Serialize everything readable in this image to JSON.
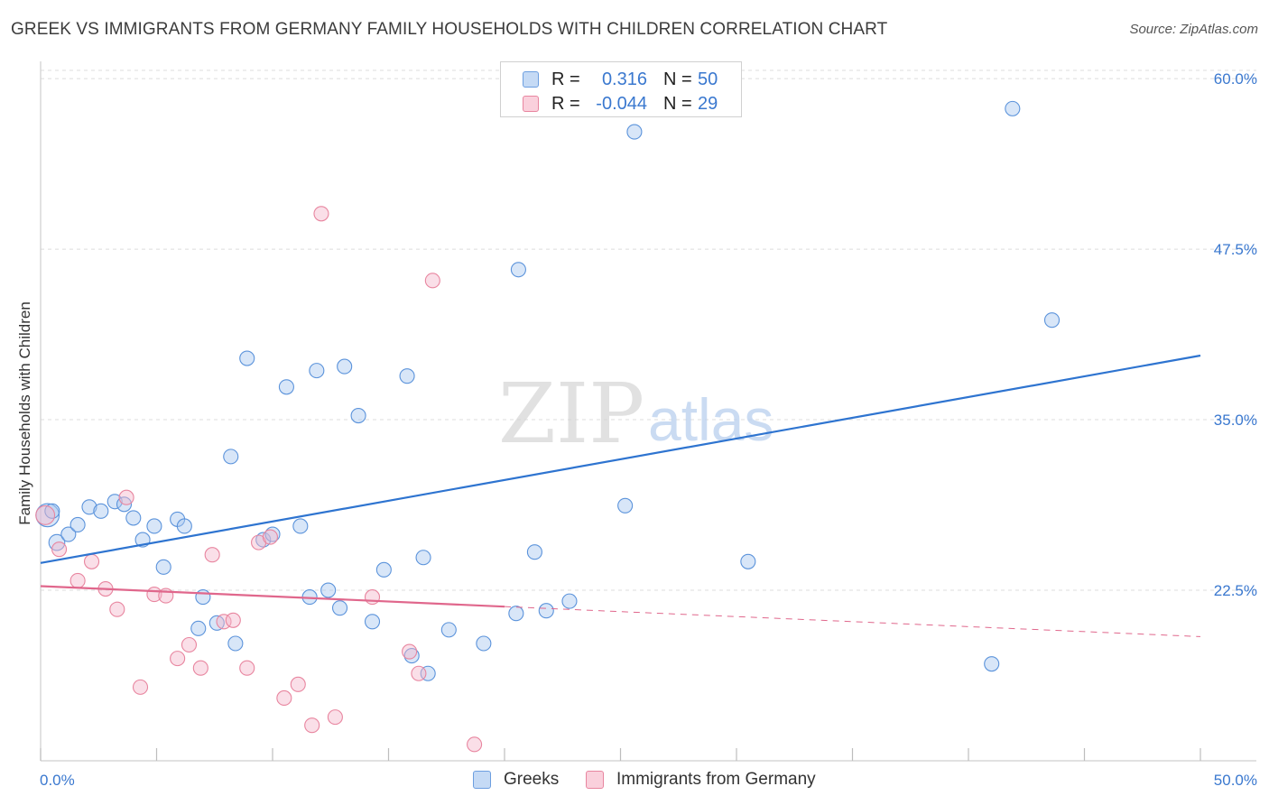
{
  "title": "GREEK VS IMMIGRANTS FROM GERMANY FAMILY HOUSEHOLDS WITH CHILDREN CORRELATION CHART",
  "source": "Source: ZipAtlas.com",
  "watermark": {
    "zip": "ZIP",
    "atlas": "atlas"
  },
  "legend_top": {
    "rows": [
      {
        "r_label": "R =",
        "r_value": "0.316",
        "n_label": "N =",
        "n_value": "50",
        "color": "#a8c8f0"
      },
      {
        "r_label": "R =",
        "r_value": "-0.044",
        "n_label": "N =",
        "n_value": "29",
        "color": "#f5b8cb"
      }
    ]
  },
  "legend_bottom": {
    "items": [
      {
        "label": "Greeks",
        "color": "#a8c8f0"
      },
      {
        "label": "Immigrants from Germany",
        "color": "#f5b8cb"
      }
    ]
  },
  "chart_data": {
    "type": "scatter",
    "title": "GREEK VS IMMIGRANTS FROM GERMANY FAMILY HOUSEHOLDS WITH CHILDREN CORRELATION CHART",
    "xlabel": "",
    "ylabel": "Family Households with Children",
    "xlim": [
      0,
      50
    ],
    "ylim": [
      10,
      61
    ],
    "x_tick_labels": [
      "0.0%",
      "50.0%"
    ],
    "y_ticks": [
      22.5,
      35.0,
      47.5,
      60.0
    ],
    "y_tick_labels": [
      "22.5%",
      "35.0%",
      "47.5%",
      "60.0%"
    ],
    "grid": true,
    "series": [
      {
        "name": "Greeks",
        "color": "#5b93db",
        "fill": "#a8c8f0",
        "points": [
          [
            0.3,
            28.0,
            16
          ],
          [
            0.7,
            26.0,
            11
          ],
          [
            1.2,
            26.6,
            10
          ],
          [
            1.6,
            27.3,
            10
          ],
          [
            2.1,
            28.6,
            10
          ],
          [
            2.6,
            28.3,
            10
          ],
          [
            3.2,
            29.0,
            10
          ],
          [
            3.6,
            28.8,
            10
          ],
          [
            4.0,
            27.8,
            10
          ],
          [
            4.4,
            26.2,
            10
          ],
          [
            4.9,
            27.2,
            10
          ],
          [
            5.3,
            24.2,
            10
          ],
          [
            5.9,
            27.7,
            10
          ],
          [
            6.2,
            27.2,
            10
          ],
          [
            6.8,
            19.7,
            10
          ],
          [
            7.0,
            22.0,
            10
          ],
          [
            7.6,
            20.1,
            10
          ],
          [
            8.2,
            32.3,
            10
          ],
          [
            8.4,
            18.6,
            10
          ],
          [
            8.9,
            39.5,
            10
          ],
          [
            9.6,
            26.2,
            10
          ],
          [
            10.0,
            26.6,
            10
          ],
          [
            10.6,
            37.4,
            10
          ],
          [
            11.2,
            27.2,
            10
          ],
          [
            11.6,
            22.0,
            10
          ],
          [
            11.9,
            38.6,
            10
          ],
          [
            12.4,
            22.5,
            10
          ],
          [
            12.9,
            21.2,
            10
          ],
          [
            13.1,
            38.9,
            10
          ],
          [
            13.7,
            35.3,
            10
          ],
          [
            14.3,
            20.2,
            10
          ],
          [
            14.8,
            24.0,
            10
          ],
          [
            15.8,
            38.2,
            10
          ],
          [
            16.0,
            17.7,
            10
          ],
          [
            16.5,
            24.9,
            10
          ],
          [
            16.7,
            16.4,
            10
          ],
          [
            17.6,
            19.6,
            10
          ],
          [
            19.1,
            18.6,
            10
          ],
          [
            20.5,
            20.8,
            10
          ],
          [
            20.6,
            46.0,
            10
          ],
          [
            21.3,
            25.3,
            10
          ],
          [
            21.8,
            21.0,
            10
          ],
          [
            22.8,
            21.7,
            10
          ],
          [
            25.2,
            28.7,
            10
          ],
          [
            25.6,
            56.1,
            10
          ],
          [
            30.5,
            24.6,
            10
          ],
          [
            41.0,
            17.1,
            10
          ],
          [
            41.9,
            57.8,
            10
          ],
          [
            43.6,
            42.3,
            10
          ],
          [
            0.5,
            28.3,
            10
          ]
        ]
      },
      {
        "name": "Immigrants from Germany",
        "color": "#e8859f",
        "fill": "#f5b8cb",
        "points": [
          [
            0.2,
            28.0,
            13
          ],
          [
            0.8,
            25.5,
            10
          ],
          [
            1.6,
            23.2,
            10
          ],
          [
            2.2,
            24.6,
            10
          ],
          [
            2.8,
            22.6,
            10
          ],
          [
            3.3,
            21.1,
            10
          ],
          [
            3.7,
            29.3,
            10
          ],
          [
            4.3,
            15.4,
            10
          ],
          [
            4.9,
            22.2,
            10
          ],
          [
            5.4,
            22.1,
            10
          ],
          [
            5.9,
            17.5,
            10
          ],
          [
            6.4,
            18.5,
            10
          ],
          [
            6.9,
            16.8,
            10
          ],
          [
            7.4,
            25.1,
            10
          ],
          [
            7.9,
            20.2,
            10
          ],
          [
            8.3,
            20.3,
            10
          ],
          [
            8.9,
            16.8,
            10
          ],
          [
            9.4,
            26.0,
            10
          ],
          [
            9.9,
            26.4,
            10
          ],
          [
            10.5,
            14.6,
            10
          ],
          [
            11.1,
            15.6,
            10
          ],
          [
            11.7,
            12.6,
            10
          ],
          [
            12.1,
            50.1,
            10
          ],
          [
            12.7,
            13.2,
            10
          ],
          [
            14.3,
            22.0,
            10
          ],
          [
            15.9,
            18.0,
            10
          ],
          [
            16.3,
            16.4,
            10
          ],
          [
            16.9,
            45.2,
            10
          ],
          [
            18.7,
            11.2,
            10
          ]
        ]
      }
    ],
    "trend_lines": [
      {
        "series": "Greeks",
        "x1": 0,
        "y1": 24.5,
        "x2": 50,
        "y2": 39.7,
        "dashed_from": null,
        "color": "#2e74d0"
      },
      {
        "series": "Immigrants from Germany",
        "x1": 0,
        "y1": 22.8,
        "x2": 20,
        "y2": 21.3,
        "dashed_to": 50,
        "dashed_y": 19.1,
        "color": "#e0678c"
      }
    ]
  }
}
